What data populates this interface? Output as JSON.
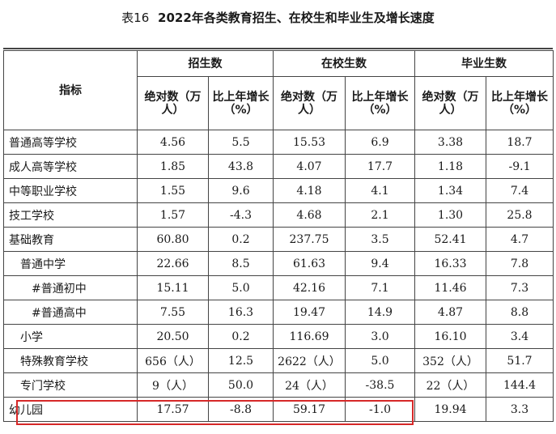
{
  "title": {
    "table_no": "表16",
    "text": "2022年各类教育招生、在校生和毕业生及增长速度"
  },
  "headers": {
    "indicator": "指标",
    "groups": [
      "招生数",
      "在校生数",
      "毕业生数"
    ],
    "abs": "绝对数（万人）",
    "growth": "比上年增长（%）"
  },
  "rows": [
    {
      "name": "普通高等学校",
      "indent": 0,
      "values": [
        "4.56",
        "5.5",
        "15.53",
        "6.9",
        "3.38",
        "18.7"
      ]
    },
    {
      "name": "成人高等学校",
      "indent": 0,
      "values": [
        "1.85",
        "43.8",
        "4.07",
        "17.7",
        "1.18",
        "-9.1"
      ]
    },
    {
      "name": "中等职业学校",
      "indent": 0,
      "values": [
        "1.55",
        "9.6",
        "4.18",
        "4.1",
        "1.34",
        "7.4"
      ]
    },
    {
      "name": "技工学校",
      "indent": 0,
      "values": [
        "1.57",
        "-4.3",
        "4.68",
        "2.1",
        "1.30",
        "25.8"
      ]
    },
    {
      "name": "基础教育",
      "indent": 0,
      "values": [
        "60.80",
        "0.2",
        "237.75",
        "3.5",
        "52.41",
        "4.7"
      ]
    },
    {
      "name": "普通中学",
      "indent": 1,
      "values": [
        "22.66",
        "8.5",
        "61.63",
        "9.4",
        "16.33",
        "7.8"
      ]
    },
    {
      "name": "#普通初中",
      "indent": 2,
      "values": [
        "15.11",
        "5.0",
        "42.16",
        "7.1",
        "11.46",
        "7.3"
      ]
    },
    {
      "name": "#普通高中",
      "indent": 2,
      "values": [
        "7.55",
        "16.3",
        "19.47",
        "14.9",
        "4.87",
        "8.8"
      ]
    },
    {
      "name": "小学",
      "indent": 1,
      "values": [
        "20.50",
        "0.2",
        "116.69",
        "3.0",
        "16.10",
        "3.4"
      ]
    },
    {
      "name": "特殊教育学校",
      "indent": 1,
      "values": [
        "656（人）",
        "12.5",
        "2622（人）",
        "5.0",
        "352（人）",
        "51.7"
      ]
    },
    {
      "name": "专门学校",
      "indent": 1,
      "values": [
        "9（人）",
        "50.0",
        "24（人）",
        "-38.5",
        "22（人）",
        "144.4"
      ]
    },
    {
      "name": "幼儿园",
      "indent": 0,
      "values": [
        "17.57",
        "-8.8",
        "59.17",
        "-1.0",
        "19.94",
        "3.3"
      ]
    }
  ],
  "highlight_color": "#d62828"
}
